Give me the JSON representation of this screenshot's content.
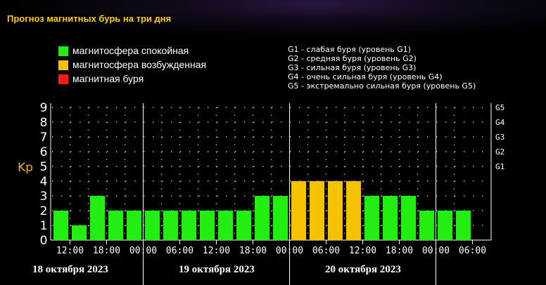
{
  "title": "Прогноз магнитных бурь на три дня",
  "legend": [
    {
      "label": "магнитосфера спокойная",
      "color": "#22ee11"
    },
    {
      "label": "магнитосфера возбужденная",
      "color": "#f5c200"
    },
    {
      "label": "магнитная буря",
      "color": "#ff1a1a"
    }
  ],
  "storm_scale": [
    "G1 - слабая буря (уровень G1)",
    "G2 - средняя буря (уровень G2)",
    "G3 - сильная буря (уровень G3)",
    "G4 - очень сильная буря (уровень G4)",
    "G5 - экстремально сильная буря (уровень G5)"
  ],
  "dates": [
    "18 октября 2023",
    "19 октября 2023",
    "20 октября 2023"
  ],
  "chart_data": {
    "type": "bar",
    "ylabel": "Kp",
    "ylim": [
      0,
      9
    ],
    "yticks": [
      "0",
      "1",
      "2",
      "3",
      "4",
      "5",
      "6",
      "7",
      "8",
      "9"
    ],
    "right_ticks": [
      {
        "kp": 5,
        "label": "G1"
      },
      {
        "kp": 6,
        "label": "G2"
      },
      {
        "kp": 7,
        "label": "G3"
      },
      {
        "kp": 8,
        "label": "G4"
      },
      {
        "kp": 9,
        "label": "G5"
      }
    ],
    "xtick_labels": [
      "12:00",
      "18:00",
      "00:00",
      "06:00",
      "12:00",
      "18:00",
      "00:00",
      "06:00",
      "12:00",
      "18:00",
      "00:00",
      "06:00"
    ],
    "values": [
      2,
      1,
      3,
      2,
      2,
      2,
      2,
      2,
      2,
      2,
      2,
      3,
      3,
      4,
      4,
      4,
      4,
      3,
      3,
      3,
      2,
      2,
      2
    ],
    "colors": {
      "quiet": "#22ee11",
      "active": "#f5c200",
      "storm": "#ff1a1a"
    },
    "grid": true
  }
}
